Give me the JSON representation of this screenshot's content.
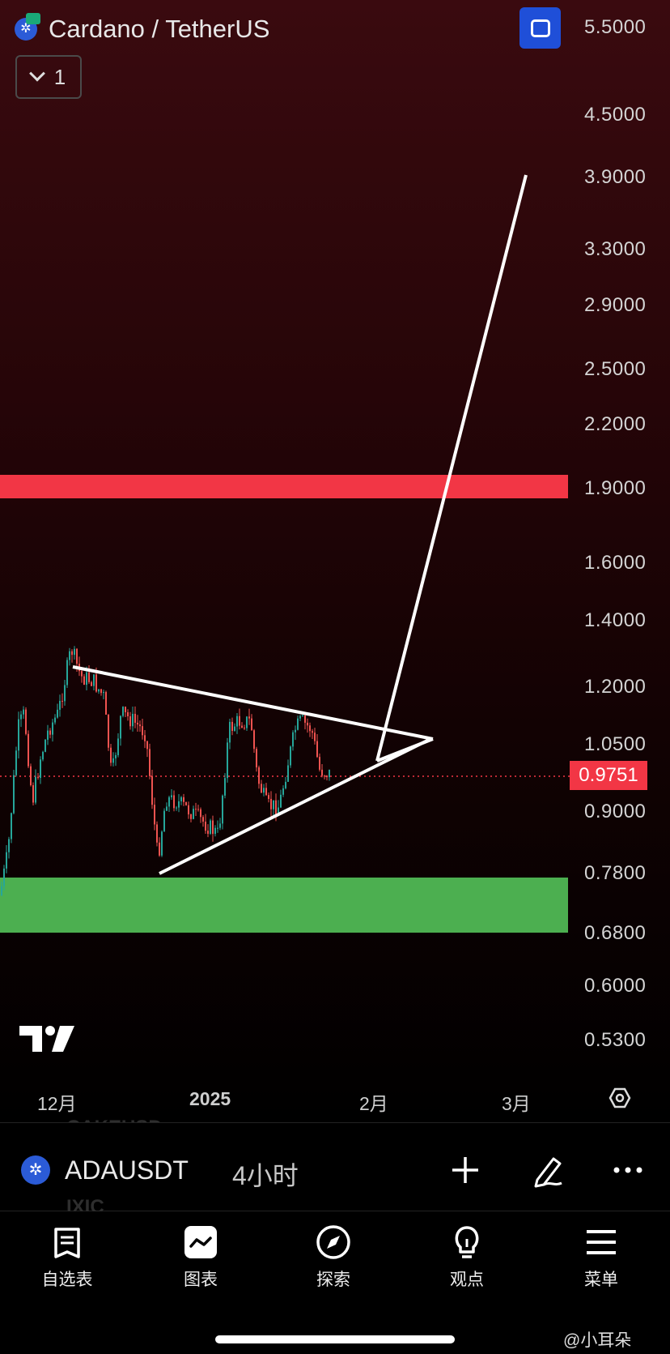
{
  "header": {
    "pair_title": "Cardano / TetherUS",
    "interval_value": "1"
  },
  "price_axis": {
    "labels": [
      "5.5000",
      "4.5000",
      "3.9000",
      "3.3000",
      "2.9000",
      "2.5000",
      "2.2000",
      "1.9000",
      "1.6000",
      "1.4000",
      "1.2000",
      "1.0500",
      "0.9000",
      "0.7800",
      "0.6800",
      "0.6000",
      "0.5300"
    ],
    "current_price": "0.9751",
    "current_price_color": "#f23645"
  },
  "time_axis": {
    "labels": [
      "12月",
      "2025",
      "2月",
      "3月"
    ]
  },
  "zones": {
    "resistance_color": "#f23645",
    "support_color": "#4caf50"
  },
  "ghost_text": {
    "top": "CAKEUSD",
    "bottom": "IXIC"
  },
  "symbol_bar": {
    "symbol": "ADAUSDT",
    "timeframe": "4小时",
    "icons": [
      "plus-icon",
      "pen-icon",
      "more-icon"
    ]
  },
  "bottom_nav": {
    "items": [
      {
        "label": "自选表",
        "icon": "watchlist-icon"
      },
      {
        "label": "图表",
        "icon": "chart-icon"
      },
      {
        "label": "探索",
        "icon": "compass-icon"
      },
      {
        "label": "观点",
        "icon": "lightbulb-icon"
      },
      {
        "label": "菜单",
        "icon": "menu-icon"
      }
    ]
  },
  "watermark": "@小耳朵"
}
